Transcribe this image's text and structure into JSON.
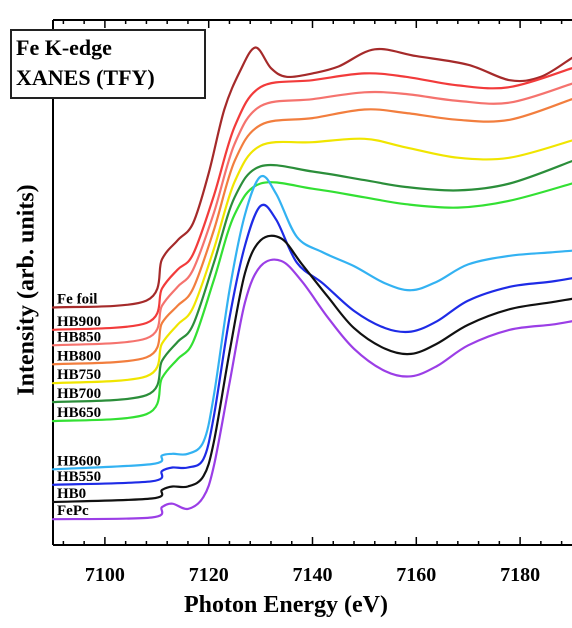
{
  "chart_data": {
    "type": "line",
    "title_lines": [
      "Fe K-edge",
      "XANES (TFY)"
    ],
    "xlabel": "Photon Energy (eV)",
    "ylabel": "Intensity (arb. units)",
    "xlim": [
      7090,
      7190
    ],
    "xticks": [
      7100,
      7120,
      7140,
      7160,
      7180
    ],
    "grid": false,
    "series": [
      {
        "name": "Fe foil",
        "color": "#A52A2A",
        "x": [
          7090,
          7108,
          7111,
          7114,
          7117,
          7120,
          7123,
          7126,
          7129,
          7132,
          7135,
          7140,
          7145,
          7152,
          7160,
          7170,
          7178,
          7184,
          7190
        ],
        "y": [
          1.68,
          1.72,
          1.96,
          2.07,
          2.17,
          2.46,
          2.83,
          3.05,
          3.19,
          3.07,
          3.02,
          3.04,
          3.08,
          3.18,
          3.14,
          3.09,
          3.0,
          3.02,
          3.13
        ]
      },
      {
        "name": "HB900",
        "color": "#F23B3B",
        "x": [
          7090,
          7108,
          7111,
          7114,
          7117,
          7121,
          7125,
          7130,
          7140,
          7150,
          7158,
          7168,
          7178,
          7190
        ],
        "y": [
          1.55,
          1.59,
          1.79,
          1.9,
          1.99,
          2.33,
          2.73,
          2.96,
          3.0,
          3.04,
          3.02,
          2.97,
          2.96,
          3.07
        ]
      },
      {
        "name": "HB850",
        "color": "#F5736E",
        "x": [
          7090,
          7108,
          7111,
          7114,
          7117,
          7121,
          7125,
          7130,
          7140,
          7150,
          7158,
          7168,
          7178,
          7190
        ],
        "y": [
          1.46,
          1.5,
          1.69,
          1.8,
          1.9,
          2.23,
          2.63,
          2.85,
          2.89,
          2.93,
          2.92,
          2.88,
          2.87,
          2.98
        ]
      },
      {
        "name": "HB800",
        "color": "#F27E3E",
        "x": [
          7090,
          7108,
          7111,
          7114,
          7117,
          7121,
          7125,
          7130,
          7140,
          7150,
          7158,
          7168,
          7178,
          7190
        ],
        "y": [
          1.35,
          1.39,
          1.59,
          1.69,
          1.79,
          2.13,
          2.53,
          2.74,
          2.78,
          2.83,
          2.81,
          2.77,
          2.77,
          2.89
        ]
      },
      {
        "name": "HB750",
        "color": "#F0E500",
        "x": [
          7090,
          7108,
          7111,
          7114,
          7117,
          7121,
          7125,
          7130,
          7140,
          7150,
          7158,
          7168,
          7178,
          7190
        ],
        "y": [
          1.24,
          1.28,
          1.47,
          1.58,
          1.68,
          2.02,
          2.41,
          2.62,
          2.64,
          2.66,
          2.61,
          2.55,
          2.55,
          2.65
        ]
      },
      {
        "name": "HB700",
        "color": "#2B8E3A",
        "x": [
          7090,
          7108,
          7111,
          7114,
          7117,
          7121,
          7125,
          7130,
          7140,
          7150,
          7158,
          7168,
          7178,
          7190
        ],
        "y": [
          1.13,
          1.17,
          1.37,
          1.48,
          1.58,
          1.94,
          2.32,
          2.5,
          2.47,
          2.42,
          2.38,
          2.36,
          2.4,
          2.53
        ]
      },
      {
        "name": "HB650",
        "color": "#33E033",
        "x": [
          7090,
          7108,
          7111,
          7114,
          7117,
          7121,
          7125,
          7130,
          7140,
          7150,
          7158,
          7168,
          7178,
          7190
        ],
        "y": [
          1.02,
          1.06,
          1.27,
          1.38,
          1.48,
          1.84,
          2.22,
          2.4,
          2.37,
          2.32,
          2.28,
          2.26,
          2.3,
          2.4
        ]
      },
      {
        "name": "HB600",
        "color": "#33B2F2",
        "x": [
          7090,
          7109,
          7111,
          7113,
          7116,
          7119,
          7121,
          7124,
          7127,
          7130,
          7133,
          7137,
          7142,
          7148,
          7154,
          7159,
          7164,
          7170,
          7178,
          7186,
          7190
        ],
        "y": [
          0.74,
          0.77,
          0.82,
          0.83,
          0.83,
          0.9,
          1.17,
          1.78,
          2.22,
          2.44,
          2.34,
          2.09,
          2.0,
          1.92,
          1.82,
          1.78,
          1.83,
          1.93,
          1.98,
          2.0,
          2.01
        ]
      },
      {
        "name": "HB550",
        "color": "#1E2BE6",
        "x": [
          7090,
          7109,
          7111,
          7113,
          7116,
          7119,
          7121,
          7124,
          7127,
          7130,
          7133,
          7137,
          7142,
          7148,
          7154,
          7159,
          7164,
          7170,
          7178,
          7186,
          7190
        ],
        "y": [
          0.65,
          0.67,
          0.73,
          0.75,
          0.75,
          0.8,
          1.05,
          1.62,
          2.04,
          2.27,
          2.19,
          1.94,
          1.82,
          1.66,
          1.56,
          1.54,
          1.6,
          1.72,
          1.8,
          1.83,
          1.85
        ]
      },
      {
        "name": "HB0",
        "color": "#111111",
        "x": [
          7090,
          7109,
          7111,
          7113,
          7116,
          7119,
          7121,
          7124,
          7127,
          7130,
          7134,
          7138,
          7143,
          7148,
          7154,
          7159,
          7164,
          7170,
          7178,
          7186,
          7190
        ],
        "y": [
          0.55,
          0.57,
          0.62,
          0.64,
          0.64,
          0.7,
          0.9,
          1.42,
          1.88,
          2.07,
          2.08,
          1.93,
          1.74,
          1.56,
          1.44,
          1.41,
          1.47,
          1.58,
          1.67,
          1.71,
          1.73
        ]
      },
      {
        "name": "FePc",
        "color": "#9B3EE6",
        "x": [
          7090,
          7109,
          7111,
          7113,
          7116,
          7119,
          7121,
          7124,
          7127,
          7130,
          7134,
          7138,
          7143,
          7148,
          7154,
          7159,
          7164,
          7170,
          7178,
          7186,
          7190
        ],
        "y": [
          0.45,
          0.46,
          0.52,
          0.54,
          0.51,
          0.58,
          0.76,
          1.24,
          1.71,
          1.92,
          1.95,
          1.83,
          1.62,
          1.44,
          1.31,
          1.28,
          1.34,
          1.46,
          1.55,
          1.58,
          1.6
        ]
      }
    ]
  }
}
